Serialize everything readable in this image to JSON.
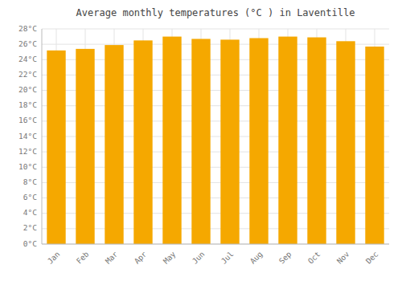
{
  "chart_data": {
    "type": "bar",
    "title": "Average monthly temperatures (°C ) in Laventille",
    "categories": [
      "Jan",
      "Feb",
      "Mar",
      "Apr",
      "May",
      "Jun",
      "Jul",
      "Aug",
      "Sep",
      "Oct",
      "Nov",
      "Dec"
    ],
    "values": [
      25.2,
      25.4,
      25.9,
      26.5,
      27.0,
      26.7,
      26.6,
      26.8,
      27.0,
      26.9,
      26.4,
      25.7
    ],
    "color": "#F5A800",
    "ylim": [
      0,
      28
    ],
    "yticks": [
      {
        "value": 0,
        "label": "0°C"
      },
      {
        "value": 2,
        "label": "2°C"
      },
      {
        "value": 4,
        "label": "4°C"
      },
      {
        "value": 6,
        "label": "6°C"
      },
      {
        "value": 8,
        "label": "8°C"
      },
      {
        "value": 10,
        "label": "10°C"
      },
      {
        "value": 12,
        "label": "12°C"
      },
      {
        "value": 14,
        "label": "14°C"
      },
      {
        "value": 16,
        "label": "16°C"
      },
      {
        "value": 18,
        "label": "18°C"
      },
      {
        "value": 20,
        "label": "20°C"
      },
      {
        "value": 22,
        "label": "22°C"
      },
      {
        "value": 24,
        "label": "24°C"
      },
      {
        "value": 26,
        "label": "26°C"
      },
      {
        "value": 28,
        "label": "28°C"
      }
    ],
    "grid": true
  }
}
